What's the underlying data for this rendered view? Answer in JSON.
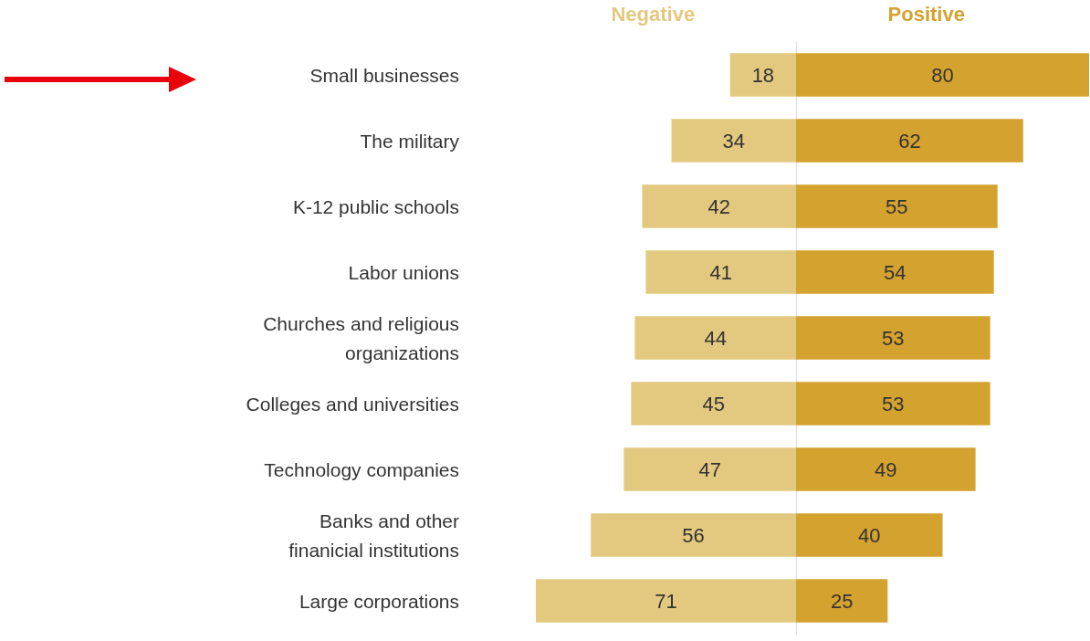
{
  "chart_data": [
    {
      "type": "bar",
      "orientation": "horizontal",
      "data_labels": true,
      "tick_labels": "y",
      "xlim": [
        71,
        0
      ],
      "categories": [
        "Small businesses",
        "The military",
        "K-12 public schools",
        "Labor unions",
        "Churches and religious\norganizations",
        "Colleges and universities",
        "Technology companies",
        "Banks and other\nfinanicial institutions",
        "Large corporations"
      ],
      "series": [
        {
          "name": "Negative",
          "color": "#e3c97f",
          "values": [
            18,
            34,
            42,
            41,
            44,
            45,
            47,
            56,
            71
          ]
        }
      ]
    },
    {
      "type": "bar",
      "orientation": "horizontal",
      "data_labels": true,
      "tick_labels": false,
      "xlim": [
        0,
        80
      ],
      "categories": [
        null,
        null,
        null,
        null,
        null,
        null,
        null,
        null,
        null
      ],
      "series": [
        {
          "name": "Positive",
          "color": "#d4a22f",
          "values": [
            80,
            62,
            55,
            54,
            53,
            53,
            49,
            40,
            25
          ]
        }
      ]
    }
  ]
}
